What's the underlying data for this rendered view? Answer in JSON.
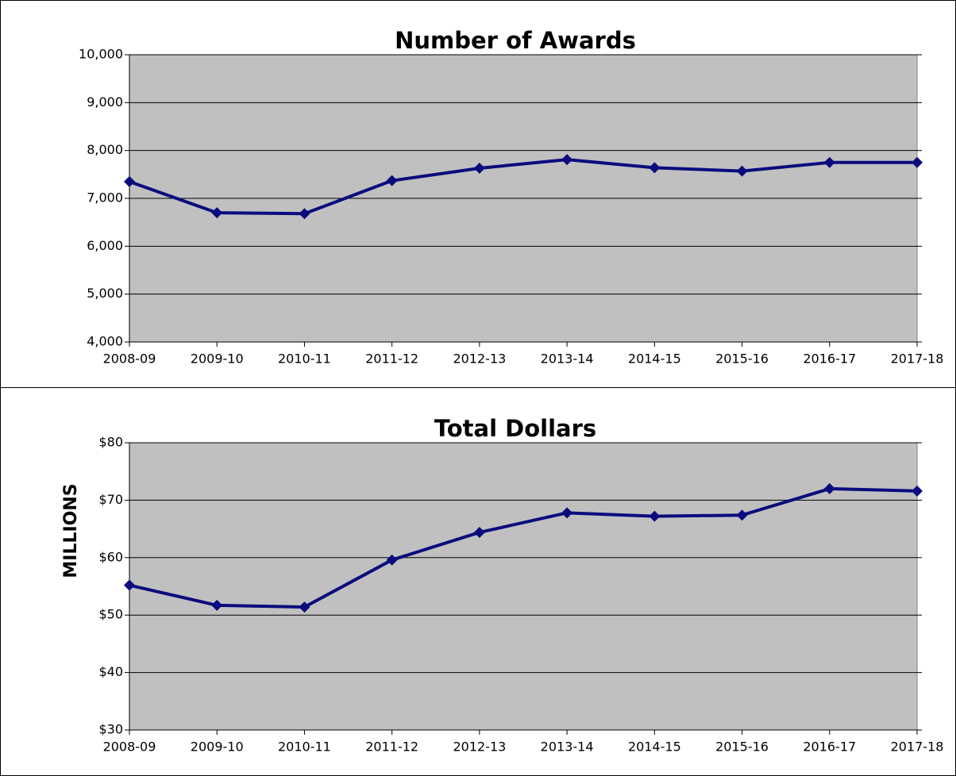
{
  "chart_data": [
    {
      "type": "line",
      "title": "Number of Awards",
      "categories": [
        "2008-09",
        "2009-10",
        "2010-11",
        "2011-12",
        "2012-13",
        "2013-14",
        "2014-15",
        "2015-16",
        "2016-17",
        "2017-18"
      ],
      "series": [
        {
          "name": "Number of Awards",
          "color": "#0b0b7d",
          "values": [
            7350,
            6700,
            6680,
            7370,
            7630,
            7810,
            7640,
            7570,
            7750,
            7750
          ]
        }
      ],
      "ylim": [
        4000,
        10000
      ],
      "yticks": [
        {
          "value": 4000,
          "label": "4,000"
        },
        {
          "value": 5000,
          "label": "5,000"
        },
        {
          "value": 6000,
          "label": "6,000"
        },
        {
          "value": 7000,
          "label": "7,000"
        },
        {
          "value": 8000,
          "label": "8,000"
        },
        {
          "value": 9000,
          "label": "9,000"
        },
        {
          "value": 10000,
          "label": "10,000"
        }
      ],
      "grid": true
    },
    {
      "type": "line",
      "title": "Total Dollars",
      "y_label": "MILLIONS",
      "categories": [
        "2008-09",
        "2009-10",
        "2010-11",
        "2011-12",
        "2012-13",
        "2013-14",
        "2014-15",
        "2015-16",
        "2016-17",
        "2017-18"
      ],
      "series": [
        {
          "name": "Total Dollars",
          "color": "#0b0b7d",
          "values": [
            55.2,
            51.7,
            51.4,
            59.6,
            64.4,
            67.8,
            67.2,
            67.4,
            72.0,
            71.6
          ]
        }
      ],
      "ylim": [
        30,
        80
      ],
      "yticks": [
        {
          "value": 30,
          "label": "$30"
        },
        {
          "value": 40,
          "label": "$40"
        },
        {
          "value": 50,
          "label": "$50"
        },
        {
          "value": 60,
          "label": "$60"
        },
        {
          "value": 70,
          "label": "$70"
        },
        {
          "value": 80,
          "label": "$80"
        }
      ],
      "grid": true
    }
  ]
}
